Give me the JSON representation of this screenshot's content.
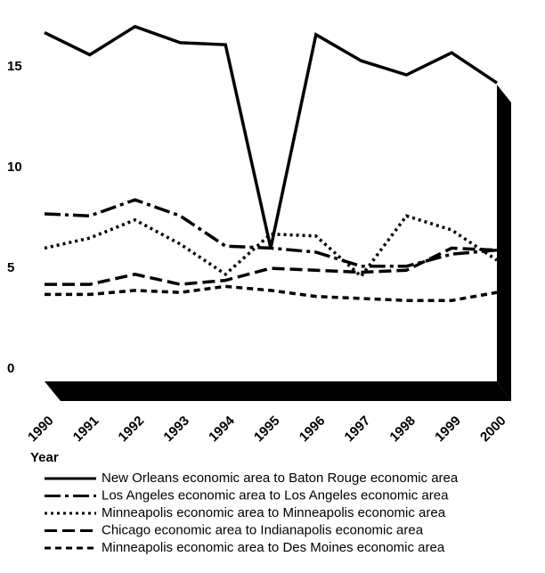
{
  "chart_data": {
    "type": "line",
    "x_label": "Year",
    "categories": [
      "1990",
      "1991",
      "1992",
      "1993",
      "1994",
      "1995",
      "1996",
      "1997",
      "1998",
      "1999",
      "2000"
    ],
    "ylim": [
      -0.6,
      17.5
    ],
    "yticks": [
      0,
      5,
      10,
      15
    ],
    "series": [
      {
        "name": "New Orleans economic area to Baton Rouge economic area",
        "color": "#000",
        "dash": "solid",
        "values": [
          16.7,
          15.6,
          17.0,
          16.2,
          16.1,
          6.0,
          16.6,
          15.3,
          14.6,
          15.7,
          14.2
        ]
      },
      {
        "name": "Los Angeles economic area to Los Angeles economic area",
        "color": "#000",
        "dash": "dashdot",
        "values": [
          7.7,
          7.6,
          8.4,
          7.6,
          6.1,
          6.0,
          5.8,
          5.1,
          5.1,
          5.7,
          5.9
        ]
      },
      {
        "name": "Minneapolis economic area to Minneapolis economic area",
        "color": "#000",
        "dash": "dotted",
        "values": [
          6.0,
          6.5,
          7.4,
          6.2,
          4.7,
          6.7,
          6.6,
          4.6,
          7.6,
          6.9,
          5.4
        ]
      },
      {
        "name": "Chicago economic area to Indianapolis economic area",
        "color": "#000",
        "dash": "dashed",
        "values": [
          4.2,
          4.2,
          4.7,
          4.2,
          4.4,
          5.0,
          4.9,
          4.8,
          4.9,
          6.0,
          5.9
        ]
      },
      {
        "name": "Minneapolis economic area to Des Moines economic area",
        "color": "#000",
        "dash": "shortdash",
        "values": [
          3.7,
          3.7,
          3.9,
          3.8,
          4.1,
          3.9,
          3.6,
          3.5,
          3.4,
          3.4,
          3.8
        ]
      }
    ]
  }
}
